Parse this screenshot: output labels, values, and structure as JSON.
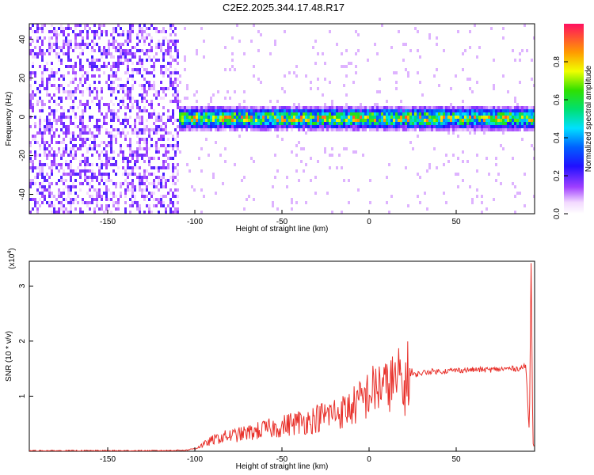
{
  "title": "C2E2.2025.344.17.48.R17",
  "chart_data": [
    {
      "type": "heatmap",
      "xlabel": "Height of straight line (km)",
      "ylabel": "Frequency (Hz)",
      "xlim": [
        -195,
        95
      ],
      "ylim": [
        -50,
        48
      ],
      "xticks": [
        -150,
        -100,
        -50,
        0,
        50
      ],
      "yticks": [
        -40,
        -20,
        0,
        20,
        40
      ],
      "colorbar": {
        "label": "Normalized spectral amplitude",
        "range": [
          0,
          1
        ],
        "ticks": [
          "0.0",
          "0.2",
          "0.4",
          "0.6",
          "0.8"
        ]
      },
      "features": [
        {
          "region": "noise",
          "x_range": [
            -195,
            -110
          ],
          "freq_range": [
            -50,
            48
          ],
          "amplitude": 0.1
        },
        {
          "region": "signal",
          "x_range": [
            -110,
            95
          ],
          "center_freq_hz": 0,
          "spread_hz": 6,
          "peak_amplitude": 0.95
        }
      ]
    },
    {
      "type": "line",
      "xlabel": "Height of straight line (km)",
      "ylabel": "SNR (10 * v/v)",
      "y_multiplier": "(x10",
      "y_multiplier_exp": "4",
      "xlim": [
        -195,
        95
      ],
      "ylim": [
        0,
        3.45
      ],
      "xticks": [
        -150,
        -100,
        -50,
        0,
        50
      ],
      "yticks": [
        1,
        2,
        3
      ],
      "series": [
        {
          "color": "#e8302a",
          "x": [
            -195,
            -120,
            -105,
            -100,
            -95,
            -90,
            -85,
            -80,
            -75,
            -70,
            -65,
            -60,
            -55,
            -50,
            -45,
            -40,
            -35,
            -30,
            -25,
            -20,
            -15,
            -10,
            -5,
            0,
            5,
            8,
            10,
            12,
            15,
            18,
            20,
            22,
            25,
            30,
            35,
            40,
            50,
            60,
            70,
            80,
            85,
            88,
            90,
            92,
            93,
            94,
            95
          ],
          "y": [
            0.01,
            0.01,
            0.02,
            0.05,
            0.12,
            0.2,
            0.25,
            0.28,
            0.3,
            0.33,
            0.36,
            0.4,
            0.42,
            0.45,
            0.5,
            0.53,
            0.55,
            0.6,
            0.65,
            0.7,
            0.72,
            0.8,
            0.9,
            1.05,
            1.15,
            1.25,
            1.1,
            1.3,
            1.2,
            1.35,
            1.05,
            1.4,
            1.38,
            1.42,
            1.45,
            1.45,
            1.47,
            1.48,
            1.48,
            1.5,
            1.5,
            1.52,
            1.55,
            0.3,
            3.4,
            0.2,
            0.1
          ]
        }
      ]
    }
  ]
}
